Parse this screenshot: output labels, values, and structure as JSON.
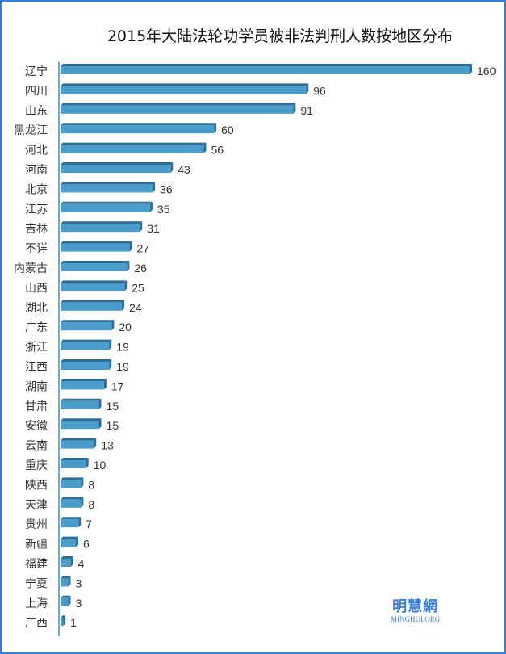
{
  "chart_data": {
    "type": "bar",
    "orientation": "horizontal",
    "title": "2015年大陆法轮功学员被非法判刑人数按地区分布",
    "categories": [
      "辽宁",
      "四川",
      "山东",
      "黑龙江",
      "河北",
      "河南",
      "北京",
      "江苏",
      "吉林",
      "不详",
      "内蒙古",
      "山西",
      "湖北",
      "广东",
      "浙江",
      "江西",
      "湖南",
      "甘肃",
      "安徽",
      "云南",
      "重庆",
      "陕西",
      "天津",
      "贵州",
      "新疆",
      "福建",
      "宁夏",
      "上海",
      "广西"
    ],
    "values": [
      160,
      96,
      91,
      60,
      56,
      43,
      36,
      35,
      31,
      27,
      26,
      25,
      24,
      20,
      19,
      19,
      17,
      15,
      15,
      13,
      10,
      8,
      8,
      7,
      6,
      4,
      3,
      3,
      1
    ],
    "xlim": [
      0,
      160
    ],
    "grid": false,
    "data_labels": true,
    "colors": {
      "bar": "#4a9ccb",
      "bar_top": "#2f6d93",
      "axis": "#6aaad8",
      "border": "#2f80e0"
    }
  },
  "watermark": {
    "cn": "明慧網",
    "en": "MINGHUI.ORG"
  }
}
